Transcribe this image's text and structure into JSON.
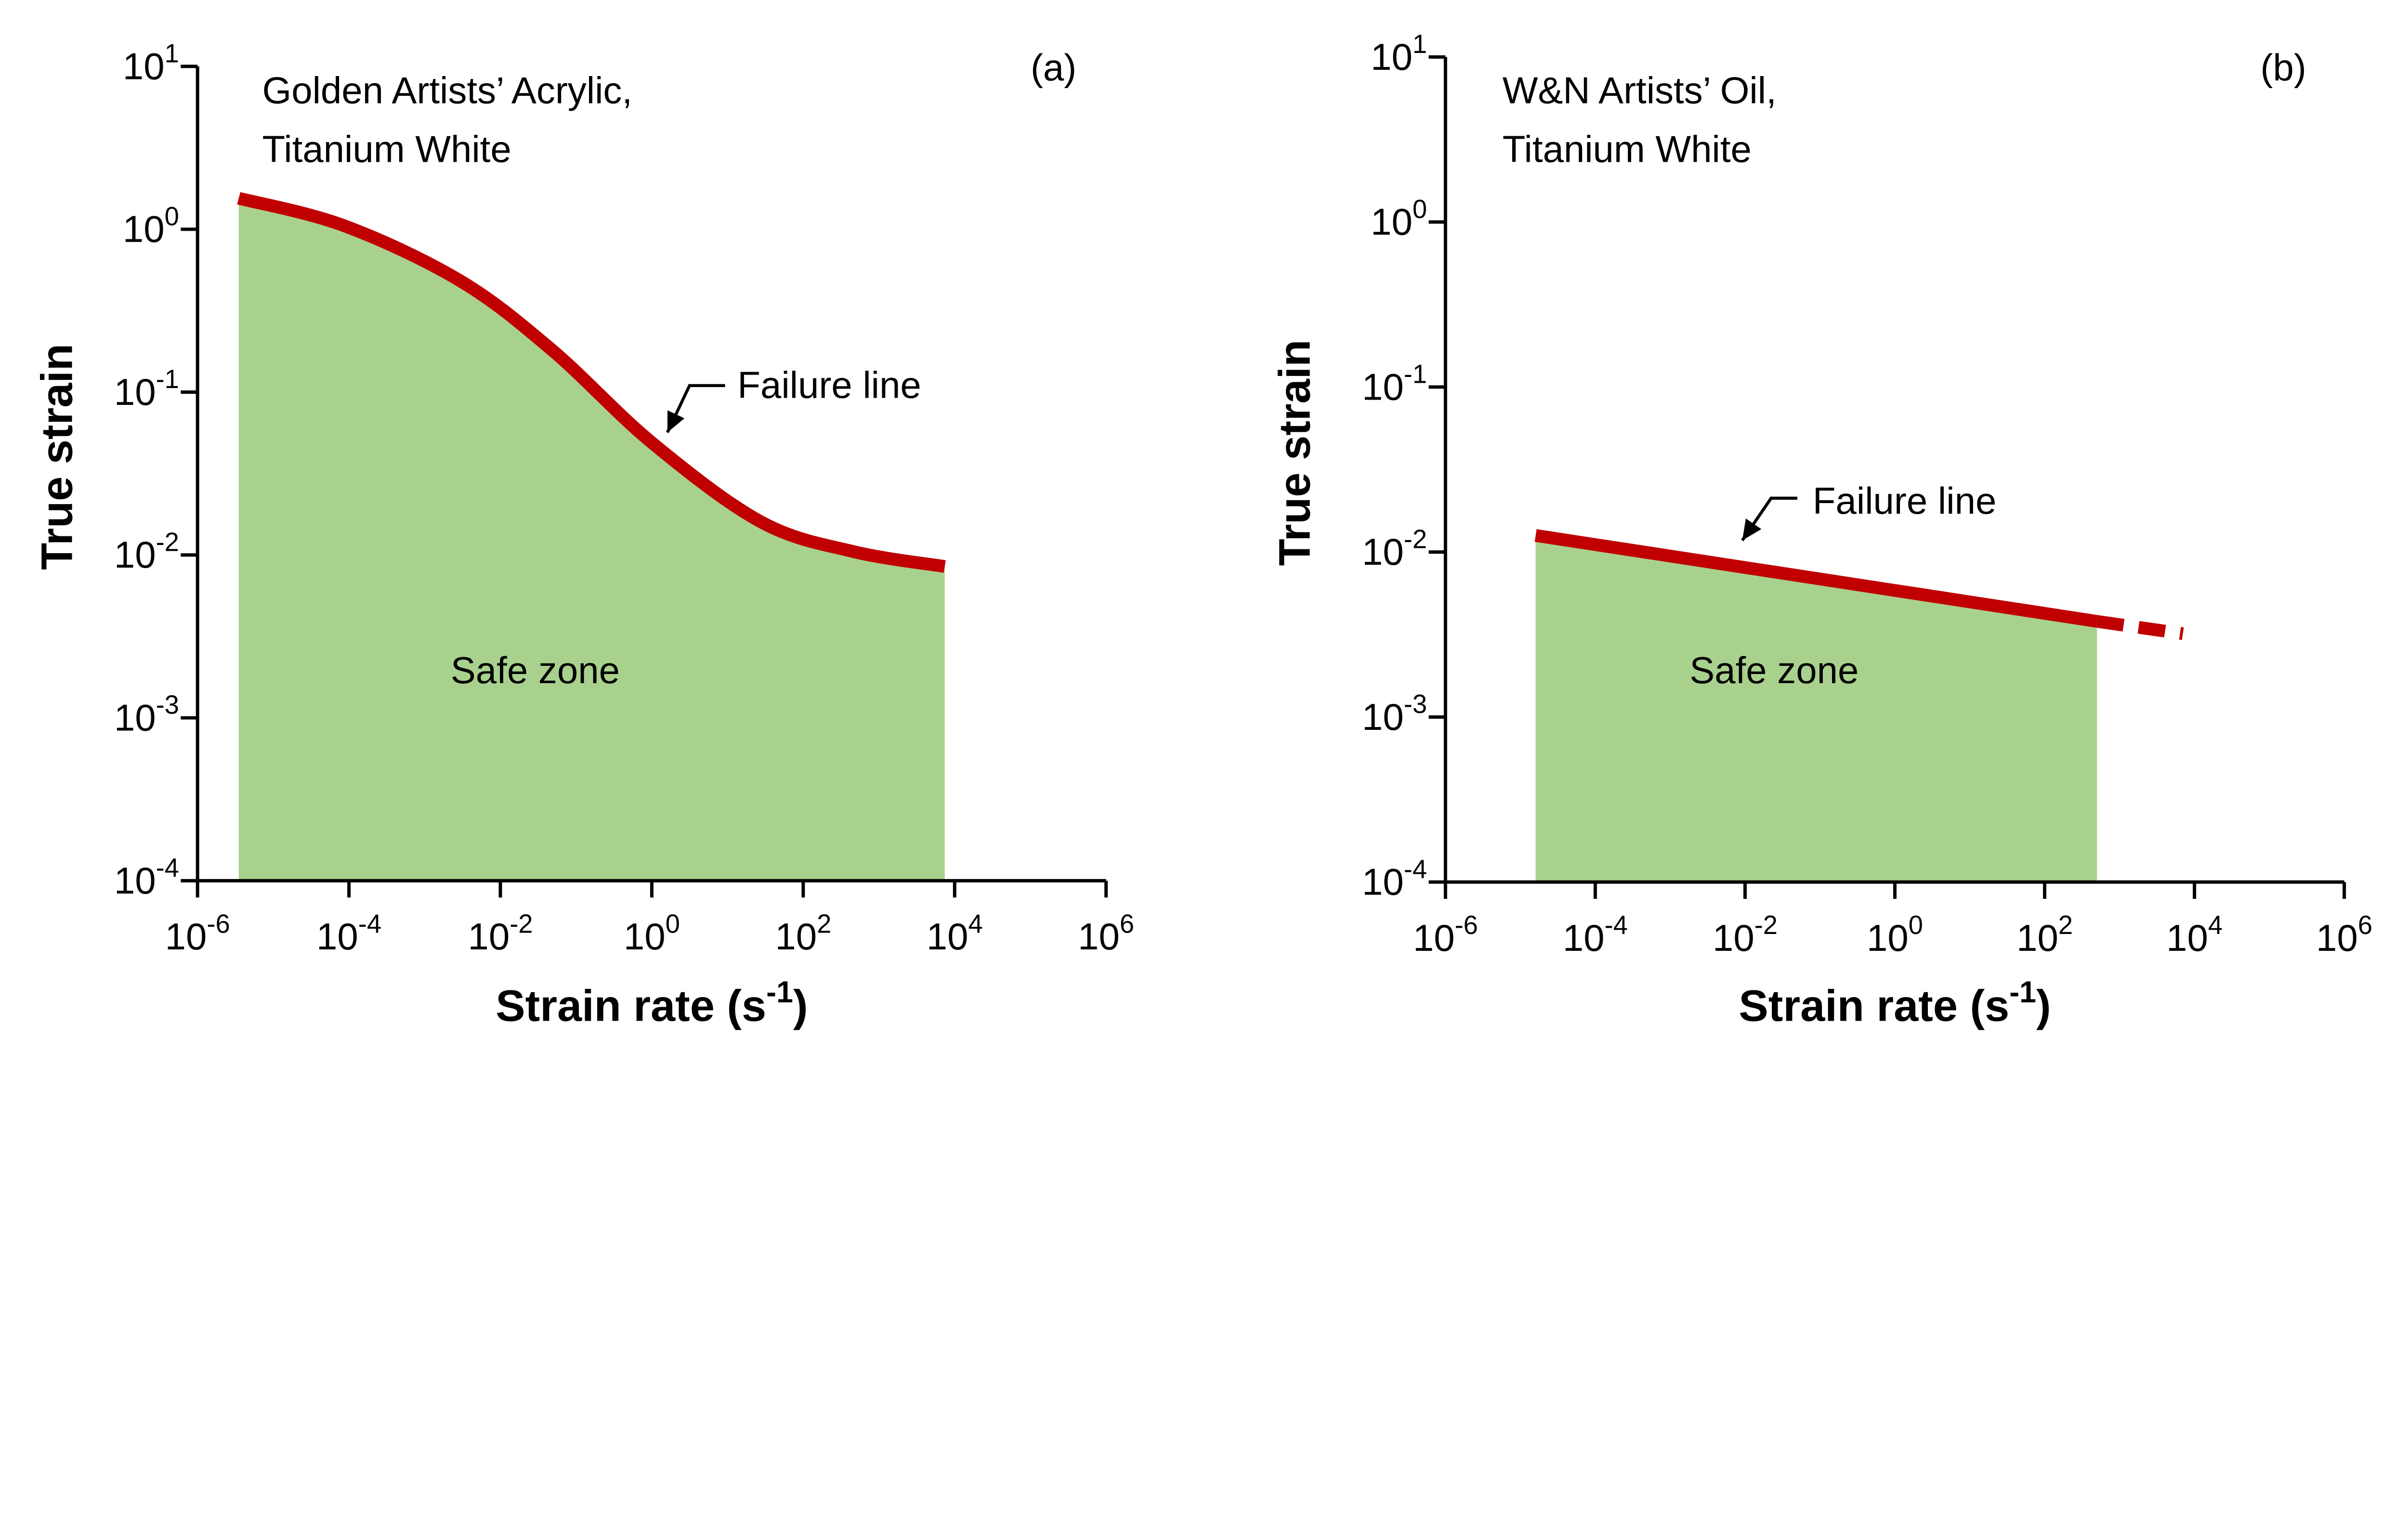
{
  "chart_data": [
    {
      "type": "area",
      "panel_label": "(a)",
      "annotation_lines": [
        "Golden Artists’ Acrylic,",
        "Titanium White"
      ],
      "xlabel": "Strain rate (s",
      "xlabel_sup": "-1",
      "xlabel_end": ")",
      "ylabel": "True strain",
      "x_scale": "log",
      "y_scale": "log",
      "xlim": [
        1e-06,
        1000000.0
      ],
      "ylim": [
        0.0001,
        10
      ],
      "xticks": [
        {
          "base": "10",
          "exp": "-6"
        },
        {
          "base": "10",
          "exp": "-4"
        },
        {
          "base": "10",
          "exp": "-2"
        },
        {
          "base": "10",
          "exp": "0"
        },
        {
          "base": "10",
          "exp": "2"
        },
        {
          "base": "10",
          "exp": "4"
        },
        {
          "base": "10",
          "exp": "6"
        }
      ],
      "yticks": [
        {
          "base": "10",
          "exp": "1"
        },
        {
          "base": "10",
          "exp": "0"
        },
        {
          "base": "10",
          "exp": "-1"
        },
        {
          "base": "10",
          "exp": "-2"
        },
        {
          "base": "10",
          "exp": "-3"
        },
        {
          "base": "10",
          "exp": "-4"
        }
      ],
      "failure_line": {
        "label": "Failure line",
        "x": [
          3.5e-06,
          8.7e-05,
          0.003,
          0.049,
          1.0,
          27.5,
          457,
          7400
        ],
        "y": [
          1.55,
          1.05,
          0.48,
          0.18,
          0.049,
          0.016,
          0.0105,
          0.0085
        ],
        "dashed_extension": null
      },
      "fill_label": "Safe zone",
      "grid": false,
      "colors": {
        "line": "#c00000",
        "fill": "#a9d18e"
      }
    },
    {
      "type": "area",
      "panel_label": "(b)",
      "annotation_lines": [
        "W&N Artists’ Oil,",
        "Titanium White"
      ],
      "xlabel": "Strain rate (s",
      "xlabel_sup": "-1",
      "xlabel_end": ")",
      "ylabel": "True strain",
      "x_scale": "log",
      "y_scale": "log",
      "xlim": [
        1e-06,
        1000000.0
      ],
      "ylim": [
        0.0001,
        10
      ],
      "xticks": [
        {
          "base": "10",
          "exp": "-6"
        },
        {
          "base": "10",
          "exp": "-4"
        },
        {
          "base": "10",
          "exp": "-2"
        },
        {
          "base": "10",
          "exp": "0"
        },
        {
          "base": "10",
          "exp": "2"
        },
        {
          "base": "10",
          "exp": "4"
        },
        {
          "base": "10",
          "exp": "6"
        }
      ],
      "yticks": [
        {
          "base": "10",
          "exp": "1"
        },
        {
          "base": "10",
          "exp": "0"
        },
        {
          "base": "10",
          "exp": "-1"
        },
        {
          "base": "10",
          "exp": "-2"
        },
        {
          "base": "10",
          "exp": "-3"
        },
        {
          "base": "10",
          "exp": "-4"
        }
      ],
      "failure_line": {
        "label": "Failure line",
        "x": [
          1.6e-05,
          500
        ],
        "y": [
          0.0126,
          0.0038
        ],
        "dashed_extension": {
          "x": [
            500,
            7000
          ],
          "y": [
            0.0038,
            0.0032
          ]
        }
      },
      "fill_label": "Safe zone",
      "grid": false,
      "colors": {
        "line": "#c00000",
        "fill": "#a9d18e"
      }
    }
  ]
}
